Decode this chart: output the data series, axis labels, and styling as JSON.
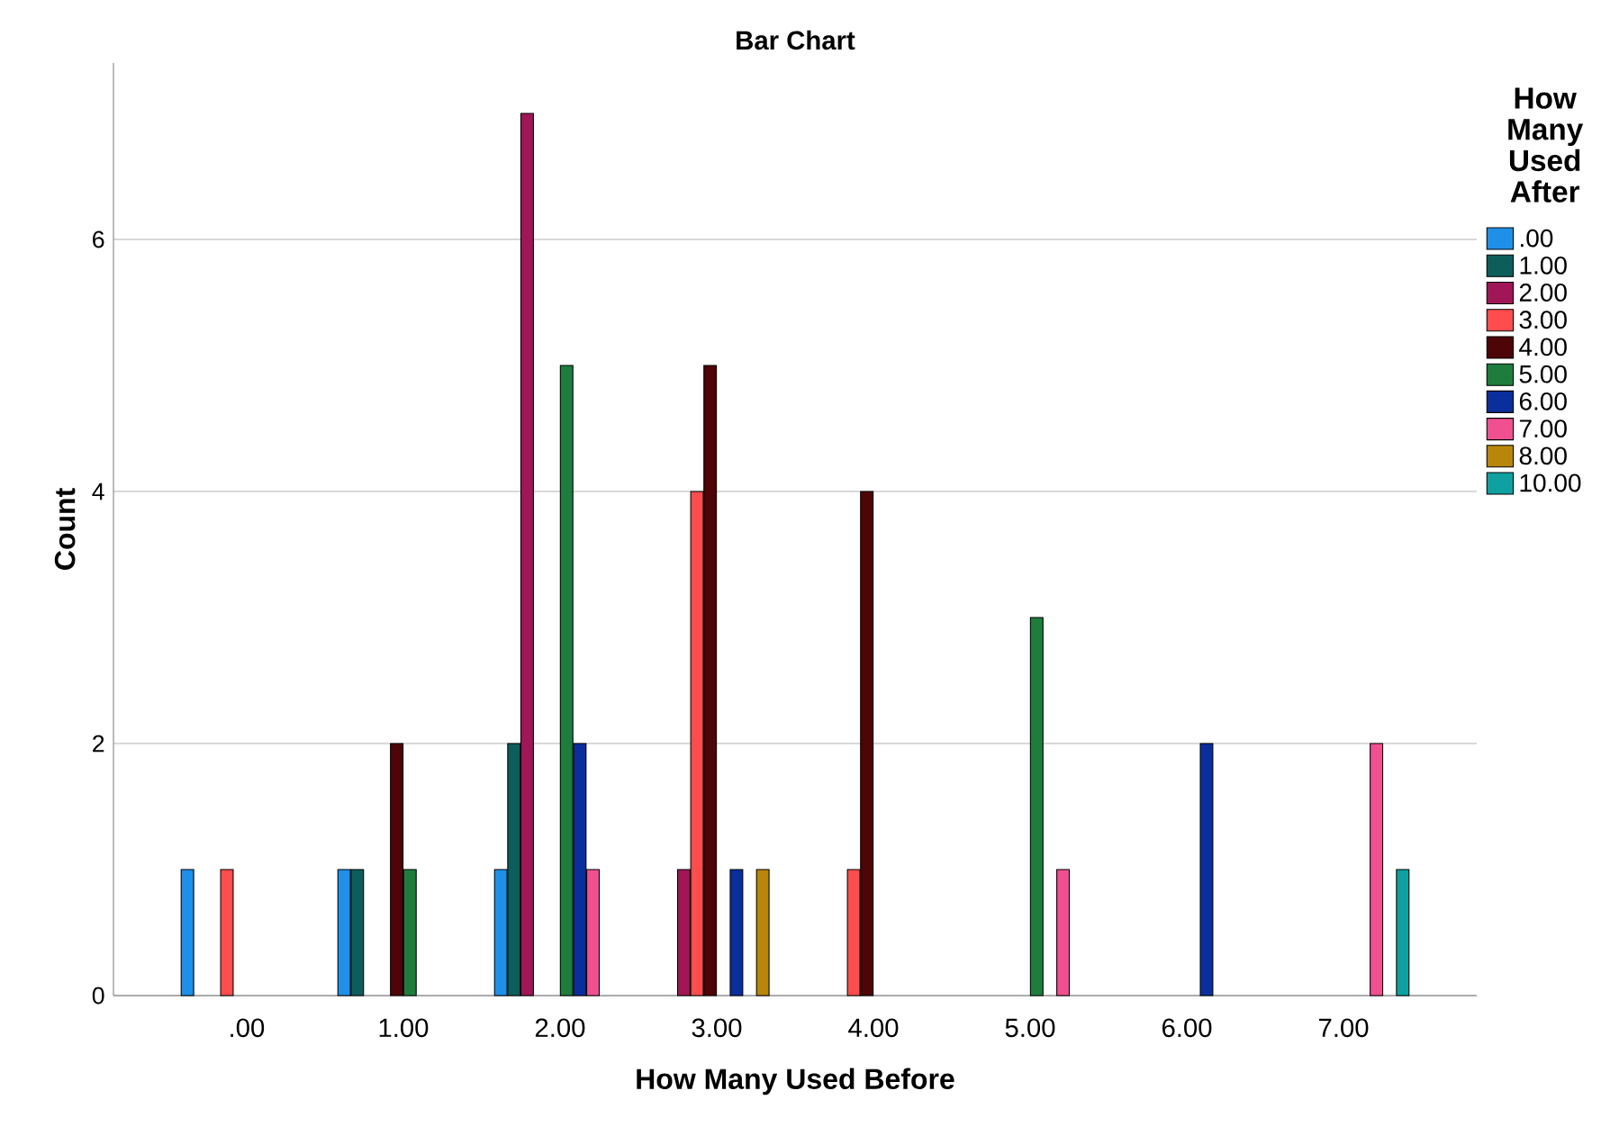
{
  "chart_data": {
    "type": "bar",
    "title": "Bar Chart",
    "xlabel": "How Many Used Before",
    "ylabel": "Count",
    "legend_title": "How Many Used After",
    "categories": [
      ".00",
      "1.00",
      "2.00",
      "3.00",
      "4.00",
      "5.00",
      "6.00",
      "7.00"
    ],
    "series": [
      {
        "name": ".00",
        "color": "#1f8fe8",
        "values": [
          1,
          1,
          1,
          null,
          null,
          null,
          null,
          null
        ]
      },
      {
        "name": "1.00",
        "color": "#0d5e5b",
        "values": [
          null,
          1,
          2,
          null,
          null,
          null,
          null,
          null
        ]
      },
      {
        "name": "2.00",
        "color": "#a01656",
        "values": [
          null,
          null,
          7,
          1,
          null,
          null,
          null,
          null
        ]
      },
      {
        "name": "3.00",
        "color": "#ff4d4d",
        "values": [
          1,
          null,
          null,
          4,
          1,
          null,
          null,
          null
        ]
      },
      {
        "name": "4.00",
        "color": "#4d0508",
        "values": [
          null,
          2,
          null,
          5,
          4,
          null,
          null,
          null
        ]
      },
      {
        "name": "5.00",
        "color": "#1e7d3c",
        "values": [
          null,
          1,
          5,
          null,
          null,
          3,
          null,
          null
        ]
      },
      {
        "name": "6.00",
        "color": "#0a2e9c",
        "values": [
          null,
          null,
          2,
          1,
          null,
          null,
          2,
          null
        ]
      },
      {
        "name": "7.00",
        "color": "#f05090",
        "values": [
          null,
          null,
          1,
          null,
          null,
          1,
          null,
          2
        ]
      },
      {
        "name": "8.00",
        "color": "#b8860b",
        "values": [
          null,
          null,
          null,
          1,
          null,
          null,
          null,
          null
        ]
      },
      {
        "name": "10.00",
        "color": "#10a0a0",
        "values": [
          null,
          null,
          null,
          null,
          null,
          null,
          null,
          1
        ]
      }
    ],
    "ylim": [
      0,
      7.4
    ],
    "yticks": [
      0,
      2,
      4,
      6
    ],
    "grid": "y",
    "legend": "right"
  }
}
